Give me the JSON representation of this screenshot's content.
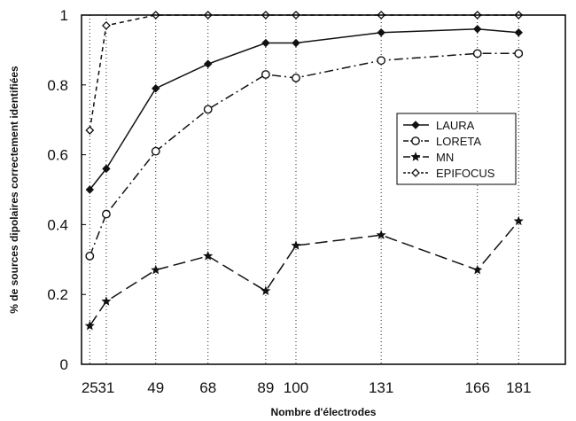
{
  "chart_data": {
    "type": "line",
    "xlabel": "Nombre d'électrodes",
    "ylabel": "% de sources dipolaires correctement identifiées",
    "x": [
      25,
      31,
      49,
      68,
      89,
      100,
      131,
      166,
      181
    ],
    "xticks": [
      25,
      31,
      49,
      68,
      89,
      100,
      131,
      166,
      181
    ],
    "xlim": [
      22,
      198
    ],
    "yticks": [
      "0",
      "0.2",
      "0.4",
      "0.6",
      "0.8",
      "1"
    ],
    "ylim": [
      0,
      1
    ],
    "grid": "vertical-dotted-at-x-ticks",
    "legend_position": "right-center",
    "series": [
      {
        "name": "LAURA",
        "marker": "diamond",
        "dash": "solid",
        "values": [
          0.5,
          0.56,
          0.79,
          0.86,
          0.92,
          0.92,
          0.95,
          0.96,
          0.95
        ]
      },
      {
        "name": "LORETA",
        "marker": "circle",
        "dash": "dashdot",
        "values": [
          0.31,
          0.43,
          0.61,
          0.73,
          0.83,
          0.82,
          0.87,
          0.89,
          0.89
        ]
      },
      {
        "name": "MN",
        "marker": "star",
        "dash": "longdash",
        "values": [
          0.11,
          0.18,
          0.27,
          0.31,
          0.21,
          0.34,
          0.37,
          0.27,
          0.41
        ]
      },
      {
        "name": "EPIFOCUS",
        "marker": "open-diamond",
        "dash": "dashed",
        "values": [
          0.67,
          0.97,
          1.0,
          1.0,
          1.0,
          1.0,
          1.0,
          1.0,
          1.0
        ]
      }
    ]
  }
}
